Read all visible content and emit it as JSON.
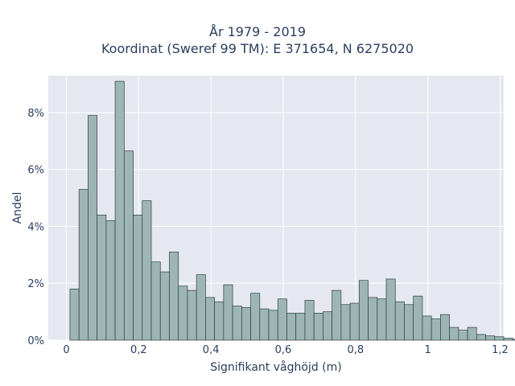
{
  "chart_data": {
    "type": "bar",
    "title_line1": "År 1979 - 2019",
    "title_line2": "Koordinat (Sweref 99 TM): E 371654, N 6275020",
    "xlabel": "Signifikant våghöjd (m)",
    "ylabel": "Andel",
    "xlim": [
      -0.05,
      1.21
    ],
    "ylim": [
      0,
      9.3
    ],
    "x_ticks": [
      {
        "value": 0,
        "label": "0"
      },
      {
        "value": 0.2,
        "label": "0,2"
      },
      {
        "value": 0.4,
        "label": "0,4"
      },
      {
        "value": 0.6,
        "label": "0,6"
      },
      {
        "value": 0.8,
        "label": "0,8"
      },
      {
        "value": 1.0,
        "label": "1"
      },
      {
        "value": 1.2,
        "label": "1,2"
      }
    ],
    "y_ticks": [
      {
        "value": 0,
        "label": "0%"
      },
      {
        "value": 2,
        "label": "2%"
      },
      {
        "value": 4,
        "label": "4%"
      },
      {
        "value": 6,
        "label": "6%"
      },
      {
        "value": 8,
        "label": "8%"
      }
    ],
    "bin_start": 0.01,
    "bin_width": 0.025,
    "values": [
      1.8,
      5.3,
      7.9,
      4.4,
      4.2,
      9.1,
      6.65,
      4.4,
      4.9,
      2.75,
      2.4,
      3.1,
      1.9,
      1.75,
      2.3,
      1.5,
      1.35,
      1.95,
      1.2,
      1.15,
      1.65,
      1.1,
      1.05,
      1.45,
      0.95,
      0.95,
      1.4,
      0.95,
      1.0,
      1.75,
      1.25,
      1.3,
      2.1,
      1.5,
      1.45,
      2.15,
      1.35,
      1.25,
      1.55,
      0.85,
      0.75,
      0.9,
      0.45,
      0.35,
      0.45,
      0.2,
      0.15,
      0.12,
      0.07,
      0.03
    ],
    "bar_color": "#9db5b5",
    "bar_edge_color": "#2f3f3f",
    "plot_bg": "#e5e8f0",
    "grid": true
  }
}
